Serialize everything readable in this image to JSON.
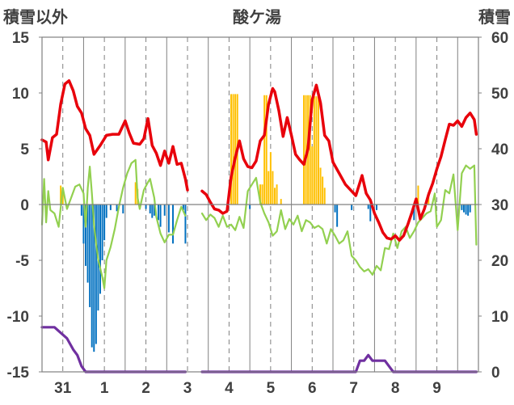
{
  "chart_data": {
    "type": "line",
    "title": "酸ケ湯",
    "ylabel_left": "積雪以外",
    "ylabel_right": "積雪",
    "ylim_left": [
      -15,
      15
    ],
    "ylim_right": [
      0,
      60
    ],
    "yticks_left": [
      "15",
      "10",
      "5",
      "0",
      "-5",
      "-10",
      "-15"
    ],
    "yticks_right": [
      "60",
      "50",
      "40",
      "30",
      "20",
      "10",
      "0"
    ],
    "x_tick_labels": [
      "31",
      "1",
      "2",
      "3",
      "4",
      "5",
      "6",
      "7",
      "8",
      "9"
    ],
    "x_range_days": [
      0,
      10.5
    ],
    "grid": "dashed-vertical",
    "colors": {
      "temperature": "#e8000b",
      "humidity_like": "#92d050",
      "snow_depth": "#7030a0",
      "precip_positive": "#ffc000",
      "precip_negative": "#0070c0",
      "axis": "#808080",
      "text": "#404040"
    },
    "series": [
      {
        "name": "",
        "axis": "left",
        "color": "#e8000b",
        "points": [
          [
            0.0,
            5.8
          ],
          [
            0.1,
            5.6
          ],
          [
            0.15,
            4.0
          ],
          [
            0.25,
            6.0
          ],
          [
            0.35,
            6.3
          ],
          [
            0.45,
            9.0
          ],
          [
            0.55,
            10.8
          ],
          [
            0.65,
            11.1
          ],
          [
            0.75,
            10.2
          ],
          [
            0.85,
            8.8
          ],
          [
            0.95,
            8.2
          ],
          [
            1.05,
            6.8
          ],
          [
            1.15,
            6.2
          ],
          [
            1.25,
            4.5
          ],
          [
            1.4,
            5.3
          ],
          [
            1.55,
            6.2
          ],
          [
            1.7,
            6.3
          ],
          [
            1.85,
            6.3
          ],
          [
            2.0,
            7.5
          ],
          [
            2.1,
            6.4
          ],
          [
            2.2,
            5.5
          ],
          [
            2.35,
            5.4
          ],
          [
            2.45,
            5.9
          ],
          [
            2.55,
            7.7
          ],
          [
            2.65,
            5.3
          ],
          [
            2.75,
            4.6
          ],
          [
            2.85,
            3.5
          ],
          [
            2.95,
            4.8
          ],
          [
            3.05,
            3.7
          ],
          [
            3.15,
            5.2
          ],
          [
            3.25,
            3.6
          ],
          [
            3.35,
            3.7
          ],
          [
            3.45,
            2.3
          ],
          [
            3.5,
            1.3
          ],
          null,
          [
            3.85,
            1.2
          ],
          [
            3.95,
            0.9
          ],
          [
            4.05,
            0.2
          ],
          [
            4.15,
            -0.4
          ],
          [
            4.25,
            -0.5
          ],
          [
            4.35,
            -0.8
          ],
          [
            4.45,
            -0.6
          ],
          [
            4.55,
            2.5
          ],
          [
            4.65,
            4.2
          ],
          [
            4.75,
            5.7
          ],
          [
            4.85,
            4.1
          ],
          [
            4.95,
            3.4
          ],
          [
            5.05,
            3.3
          ],
          [
            5.15,
            3.9
          ],
          [
            5.25,
            5.7
          ],
          [
            5.35,
            6.2
          ],
          [
            5.45,
            9.0
          ],
          [
            5.55,
            10.4
          ],
          [
            5.6,
            10.1
          ],
          [
            5.7,
            8.4
          ],
          [
            5.8,
            6.1
          ],
          [
            5.9,
            7.8
          ],
          [
            6.0,
            6.2
          ],
          [
            6.1,
            4.5
          ],
          [
            6.2,
            4.0
          ],
          [
            6.3,
            3.6
          ],
          [
            6.4,
            5.0
          ],
          [
            6.5,
            9.4
          ],
          [
            6.6,
            10.7
          ],
          [
            6.7,
            9.1
          ],
          [
            6.8,
            6.2
          ],
          [
            6.9,
            5.7
          ],
          [
            7.0,
            3.8
          ],
          [
            7.15,
            2.8
          ],
          [
            7.3,
            1.8
          ],
          [
            7.45,
            1.2
          ],
          [
            7.55,
            0.8
          ],
          [
            7.7,
            2.6
          ],
          [
            7.8,
            1.0
          ],
          [
            7.9,
            0.4
          ],
          [
            8.0,
            -0.8
          ],
          [
            8.1,
            -1.6
          ],
          [
            8.2,
            -2.5
          ],
          [
            8.3,
            -3.0
          ],
          [
            8.4,
            -3.1
          ],
          [
            8.5,
            -2.8
          ],
          [
            8.6,
            -3.2
          ],
          [
            8.7,
            -2.8
          ],
          [
            8.8,
            -1.8
          ],
          [
            8.9,
            -0.7
          ],
          [
            9.0,
            0.5
          ],
          [
            9.1,
            -1.3
          ],
          [
            9.2,
            -0.4
          ],
          [
            9.3,
            0.9
          ],
          [
            9.4,
            1.9
          ],
          [
            9.5,
            3.2
          ],
          [
            9.6,
            4.3
          ],
          [
            9.7,
            5.8
          ],
          [
            9.8,
            7.2
          ],
          [
            9.9,
            7.1
          ],
          [
            10.0,
            7.5
          ],
          [
            10.1,
            7.0
          ],
          [
            10.2,
            7.8
          ],
          [
            10.3,
            8.2
          ],
          [
            10.4,
            7.6
          ],
          [
            10.45,
            6.3
          ]
        ]
      },
      {
        "name": "",
        "axis": "left",
        "color": "#92d050",
        "points": [
          [
            0.0,
            -1.8
          ],
          [
            0.05,
            2.3
          ],
          [
            0.1,
            -1.6
          ],
          [
            0.15,
            1.2
          ],
          [
            0.2,
            -0.5
          ],
          [
            0.3,
            -0.8
          ],
          [
            0.4,
            -2.0
          ],
          [
            0.5,
            1.5
          ],
          [
            0.6,
            -0.4
          ],
          [
            0.7,
            0.6
          ],
          [
            0.8,
            1.6
          ],
          [
            0.9,
            1.8
          ],
          [
            1.0,
            1.0
          ],
          [
            1.05,
            -2.0
          ],
          [
            1.1,
            1.5
          ],
          [
            1.15,
            3.4
          ],
          [
            1.2,
            1.0
          ],
          [
            1.25,
            -1.8
          ],
          [
            1.3,
            -3.5
          ],
          [
            1.35,
            -4.9
          ],
          [
            1.45,
            -6.5
          ],
          [
            1.5,
            -7.5
          ],
          [
            1.55,
            -5.0
          ],
          [
            1.65,
            -3.8
          ],
          [
            1.75,
            -2.2
          ],
          [
            1.85,
            -0.2
          ],
          [
            1.95,
            1.5
          ],
          [
            2.05,
            2.8
          ],
          [
            2.15,
            3.7
          ],
          [
            2.25,
            4.0
          ],
          [
            2.3,
            0.6
          ],
          [
            2.35,
            -0.4
          ],
          [
            2.45,
            1.3
          ],
          [
            2.55,
            2.0
          ],
          [
            2.6,
            2.3
          ],
          [
            2.7,
            0.6
          ],
          [
            2.75,
            -1.1
          ],
          [
            2.85,
            -2.6
          ],
          [
            2.95,
            -3.4
          ],
          [
            3.05,
            -2.7
          ],
          [
            3.15,
            -2.7
          ],
          [
            3.25,
            -1.4
          ],
          [
            3.35,
            -0.2
          ],
          [
            3.45,
            -1.0
          ],
          null,
          [
            3.85,
            -0.8
          ],
          [
            3.95,
            -1.4
          ],
          [
            4.05,
            -0.9
          ],
          [
            4.15,
            -1.2
          ],
          [
            4.25,
            -2.0
          ],
          [
            4.35,
            -1.0
          ],
          [
            4.45,
            -2.0
          ],
          [
            4.55,
            -1.8
          ],
          [
            4.65,
            -2.3
          ],
          [
            4.75,
            -1.1
          ],
          [
            4.85,
            -2.1
          ],
          [
            4.95,
            1.2
          ],
          [
            5.05,
            1.8
          ],
          [
            5.15,
            2.4
          ],
          [
            5.25,
            0.2
          ],
          [
            5.35,
            -0.8
          ],
          [
            5.45,
            -1.6
          ],
          [
            5.55,
            -2.8
          ],
          [
            5.65,
            -2.4
          ],
          [
            5.75,
            -0.5
          ],
          [
            5.85,
            -2.2
          ],
          [
            5.95,
            -1.3
          ],
          [
            6.05,
            -1.8
          ],
          [
            6.15,
            -1.0
          ],
          [
            6.25,
            -2.4
          ],
          [
            6.35,
            -1.4
          ],
          [
            6.45,
            -1.6
          ],
          [
            6.55,
            -2.1
          ],
          [
            6.65,
            -1.9
          ],
          [
            6.75,
            -2.2
          ],
          [
            6.85,
            -3.5
          ],
          [
            6.95,
            -2.2
          ],
          [
            7.05,
            -2.8
          ],
          [
            7.15,
            -3.5
          ],
          [
            7.25,
            -3.2
          ],
          [
            7.35,
            -2.4
          ],
          [
            7.45,
            -4.6
          ],
          [
            7.55,
            -5.0
          ],
          [
            7.65,
            -5.6
          ],
          [
            7.75,
            -6.0
          ],
          [
            7.85,
            -5.8
          ],
          [
            7.95,
            -6.3
          ],
          [
            8.05,
            -5.5
          ],
          [
            8.15,
            -5.9
          ],
          [
            8.25,
            -3.9
          ],
          [
            8.35,
            -4.0
          ],
          [
            8.45,
            -2.6
          ],
          [
            8.55,
            -3.9
          ],
          [
            8.65,
            -2.4
          ],
          [
            8.75,
            -2.0
          ],
          [
            8.85,
            -3.0
          ],
          [
            8.95,
            -2.4
          ],
          [
            9.05,
            -1.6
          ],
          [
            9.15,
            -1.2
          ],
          [
            9.25,
            -0.8
          ],
          [
            9.35,
            -0.6
          ],
          [
            9.45,
            1.0
          ],
          [
            9.5,
            -2.0
          ],
          [
            9.6,
            -1.4
          ],
          [
            9.7,
            1.3
          ],
          [
            9.8,
            1.0
          ],
          [
            9.9,
            2.7
          ],
          [
            10.0,
            -2.3
          ],
          [
            10.1,
            2.8
          ],
          [
            10.2,
            3.5
          ],
          [
            10.3,
            3.2
          ],
          [
            10.4,
            3.5
          ],
          [
            10.45,
            -3.6
          ]
        ]
      },
      {
        "name": "",
        "axis": "right",
        "color": "#7030a0",
        "points": [
          [
            0.0,
            8
          ],
          [
            0.3,
            8
          ],
          [
            0.45,
            7
          ],
          [
            0.6,
            6
          ],
          [
            0.75,
            4
          ],
          [
            0.85,
            3
          ],
          [
            0.95,
            1
          ],
          [
            1.05,
            0
          ],
          [
            3.45,
            0
          ],
          null,
          [
            3.85,
            0
          ],
          [
            7.55,
            0
          ],
          [
            7.65,
            2
          ],
          [
            7.75,
            2
          ],
          [
            7.85,
            3
          ],
          [
            7.95,
            2
          ],
          [
            8.05,
            2
          ],
          [
            8.25,
            2
          ],
          [
            8.35,
            1
          ],
          [
            8.45,
            0
          ],
          [
            10.45,
            0
          ]
        ]
      }
    ],
    "bars": [
      {
        "x": 0.45,
        "v": 1.7
      },
      {
        "x": 0.5,
        "v": 1.0
      },
      {
        "x": 0.95,
        "v": -1.0
      },
      {
        "x": 1.0,
        "v": -3.5
      },
      {
        "x": 1.05,
        "v": -5.5
      },
      {
        "x": 1.1,
        "v": -7.0
      },
      {
        "x": 1.15,
        "v": -9.2
      },
      {
        "x": 1.2,
        "v": -12.8
      },
      {
        "x": 1.25,
        "v": -13.2
      },
      {
        "x": 1.3,
        "v": -12.5
      },
      {
        "x": 1.35,
        "v": -9.5
      },
      {
        "x": 1.4,
        "v": -8.0
      },
      {
        "x": 1.45,
        "v": -5.0
      },
      {
        "x": 1.5,
        "v": -3.2
      },
      {
        "x": 1.55,
        "v": -1.2
      },
      {
        "x": 1.65,
        "v": -0.5
      },
      {
        "x": 1.8,
        "v": -0.6
      },
      {
        "x": 1.95,
        "v": -0.8
      },
      {
        "x": 2.25,
        "v": 2.0
      },
      {
        "x": 2.3,
        "v": 1.4
      },
      {
        "x": 2.5,
        "v": -0.4
      },
      {
        "x": 2.6,
        "v": -0.8
      },
      {
        "x": 2.65,
        "v": -1.2
      },
      {
        "x": 2.7,
        "v": -1.0
      },
      {
        "x": 2.8,
        "v": -1.4
      },
      {
        "x": 2.85,
        "v": -2.0
      },
      {
        "x": 2.95,
        "v": -1.0
      },
      {
        "x": 3.05,
        "v": -2.5
      },
      {
        "x": 3.15,
        "v": -3.5
      },
      {
        "x": 3.4,
        "v": -0.5
      },
      {
        "x": 3.45,
        "v": -3.5
      },
      {
        "x": 4.55,
        "v": 9.9
      },
      {
        "x": 4.6,
        "v": 9.9
      },
      {
        "x": 4.65,
        "v": 9.9
      },
      {
        "x": 4.7,
        "v": 9.9
      },
      {
        "x": 5.0,
        "v": -0.4
      },
      {
        "x": 5.25,
        "v": 1.8
      },
      {
        "x": 5.3,
        "v": 1.8
      },
      {
        "x": 5.35,
        "v": 9.8
      },
      {
        "x": 5.4,
        "v": 9.8
      },
      {
        "x": 5.45,
        "v": 3.0
      },
      {
        "x": 5.5,
        "v": 4.7
      },
      {
        "x": 5.55,
        "v": 3.0
      },
      {
        "x": 5.6,
        "v": 1.5
      },
      {
        "x": 5.65,
        "v": 1.8
      },
      {
        "x": 5.75,
        "v": 0.5
      },
      {
        "x": 6.3,
        "v": 9.8
      },
      {
        "x": 6.35,
        "v": 9.8
      },
      {
        "x": 6.4,
        "v": 9.8
      },
      {
        "x": 6.45,
        "v": 9.8
      },
      {
        "x": 6.5,
        "v": 5.2
      },
      {
        "x": 6.55,
        "v": 9.7
      },
      {
        "x": 6.6,
        "v": 9.7
      },
      {
        "x": 6.65,
        "v": 9.7
      },
      {
        "x": 6.7,
        "v": 3.3
      },
      {
        "x": 6.75,
        "v": 2.5
      },
      {
        "x": 6.8,
        "v": 1.5
      },
      {
        "x": 7.05,
        "v": -0.7
      },
      {
        "x": 7.1,
        "v": -2.0
      },
      {
        "x": 7.45,
        "v": -0.5
      },
      {
        "x": 7.85,
        "v": -0.4
      },
      {
        "x": 7.9,
        "v": -1.5
      },
      {
        "x": 8.05,
        "v": -0.5
      },
      {
        "x": 8.95,
        "v": -1.4
      },
      {
        "x": 9.05,
        "v": 1.7
      },
      {
        "x": 9.3,
        "v": 1.1
      },
      {
        "x": 10.1,
        "v": -0.5
      },
      {
        "x": 10.15,
        "v": -0.7
      },
      {
        "x": 10.2,
        "v": -0.9
      },
      {
        "x": 10.25,
        "v": -1.0
      },
      {
        "x": 10.3,
        "v": -0.7
      }
    ]
  }
}
